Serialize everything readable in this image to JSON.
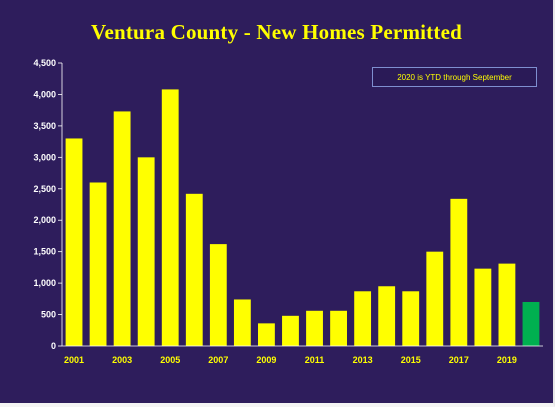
{
  "chart_data": {
    "type": "bar",
    "title": "Ventura County - New Homes Permitted",
    "annotation": "2020 is YTD through September",
    "categories": [
      "2001",
      "2002",
      "2003",
      "2004",
      "2005",
      "2006",
      "2007",
      "2008",
      "2009",
      "2010",
      "2011",
      "2012",
      "2013",
      "2014",
      "2015",
      "2016",
      "2017",
      "2018",
      "2019",
      "2020"
    ],
    "x_tick_labels": [
      "2001",
      "2003",
      "2005",
      "2007",
      "2009",
      "2011",
      "2013",
      "2015",
      "2017",
      "2019"
    ],
    "values": [
      3300,
      2600,
      3730,
      3000,
      4080,
      2420,
      1620,
      740,
      360,
      480,
      560,
      560,
      870,
      950,
      870,
      1500,
      2340,
      1230,
      1310,
      700
    ],
    "y_ticks": [
      0,
      500,
      1000,
      1500,
      2000,
      2500,
      3000,
      3500,
      4000,
      4500
    ],
    "y_tick_labels": [
      "0",
      "500",
      "1,000",
      "1,500",
      "2,000",
      "2,500",
      "3,000",
      "3,500",
      "4,000",
      "4,500"
    ],
    "ylim": [
      0,
      4500
    ],
    "grid": false,
    "bar_color": "#ffff00",
    "highlight_color": "#00b050",
    "highlight_index": 19,
    "background_color": "#2e1d5c",
    "axis_color": "#ffffff",
    "xlabel": "",
    "ylabel": ""
  }
}
